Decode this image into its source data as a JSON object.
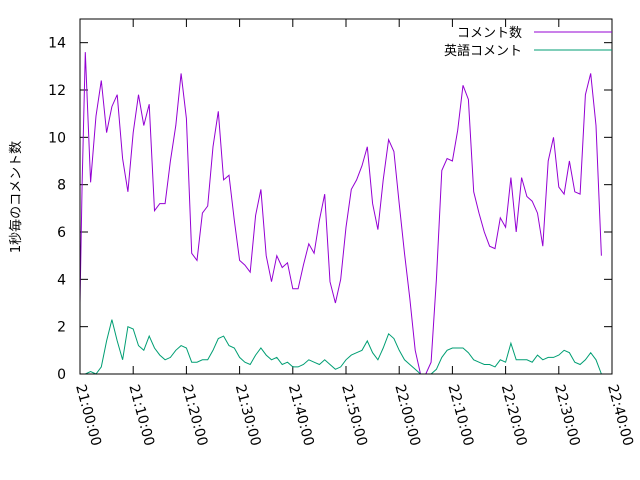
{
  "chart_data": {
    "type": "line",
    "ylabel": "1秒毎のコメント数",
    "xlabel": "",
    "title": "",
    "ylim": [
      0,
      15
    ],
    "yticks": [
      0,
      2,
      4,
      6,
      8,
      10,
      12,
      14
    ],
    "xlim_minutes": [
      0,
      100
    ],
    "xtick_minutes": [
      0,
      10,
      20,
      30,
      40,
      50,
      60,
      70,
      80,
      90,
      100
    ],
    "xtick_labels": [
      "21:00:00",
      "21:10:00",
      "21:20:00",
      "21:30:00",
      "21:40:00",
      "21:50:00",
      "22:00:00",
      "22:10:00",
      "22:20:00",
      "22:30:00",
      "22:40:00"
    ],
    "grid": false,
    "legend_position": "top-right",
    "series": [
      {
        "name": "コメント数",
        "color": "#9400d3",
        "points": [
          [
            0.0,
            3.0
          ],
          [
            0.4,
            8.0
          ],
          [
            1.0,
            13.6
          ],
          [
            2.0,
            8.1
          ],
          [
            3.0,
            10.9
          ],
          [
            4.0,
            12.4
          ],
          [
            5.0,
            10.2
          ],
          [
            6.0,
            11.3
          ],
          [
            7.0,
            11.8
          ],
          [
            8.0,
            9.1
          ],
          [
            9.0,
            7.7
          ],
          [
            10.0,
            10.2
          ],
          [
            11.0,
            11.8
          ],
          [
            12.0,
            10.5
          ],
          [
            13.0,
            11.4
          ],
          [
            14.0,
            6.9
          ],
          [
            15.0,
            7.2
          ],
          [
            16.0,
            7.2
          ],
          [
            17.0,
            9.0
          ],
          [
            18.0,
            10.5
          ],
          [
            19.0,
            12.7
          ],
          [
            20.0,
            10.8
          ],
          [
            21.0,
            5.1
          ],
          [
            22.0,
            4.8
          ],
          [
            23.0,
            6.8
          ],
          [
            24.0,
            7.1
          ],
          [
            25.0,
            9.6
          ],
          [
            26.0,
            11.1
          ],
          [
            27.0,
            8.2
          ],
          [
            28.0,
            8.4
          ],
          [
            29.0,
            6.5
          ],
          [
            30.0,
            4.8
          ],
          [
            31.0,
            4.6
          ],
          [
            32.0,
            4.3
          ],
          [
            33.0,
            6.7
          ],
          [
            34.0,
            7.8
          ],
          [
            35.0,
            5.0
          ],
          [
            36.0,
            3.9
          ],
          [
            37.0,
            5.0
          ],
          [
            38.0,
            4.5
          ],
          [
            39.0,
            4.7
          ],
          [
            40.0,
            3.6
          ],
          [
            41.0,
            3.6
          ],
          [
            42.0,
            4.6
          ],
          [
            43.0,
            5.5
          ],
          [
            44.0,
            5.1
          ],
          [
            45.0,
            6.5
          ],
          [
            46.0,
            7.6
          ],
          [
            47.0,
            3.9
          ],
          [
            48.0,
            3.0
          ],
          [
            49.0,
            4.0
          ],
          [
            50.0,
            6.2
          ],
          [
            51.0,
            7.8
          ],
          [
            52.0,
            8.2
          ],
          [
            53.0,
            8.8
          ],
          [
            54.0,
            9.6
          ],
          [
            55.0,
            7.2
          ],
          [
            56.0,
            6.1
          ],
          [
            57.0,
            8.2
          ],
          [
            58.0,
            9.9
          ],
          [
            59.0,
            9.4
          ],
          [
            60.0,
            7.2
          ],
          [
            61.0,
            5.1
          ],
          [
            62.0,
            3.2
          ],
          [
            63.0,
            1.0
          ],
          [
            64.0,
            0.0
          ],
          [
            65.0,
            0.0
          ],
          [
            66.0,
            0.5
          ],
          [
            67.0,
            4.0
          ],
          [
            68.0,
            8.6
          ],
          [
            69.0,
            9.1
          ],
          [
            70.0,
            9.0
          ],
          [
            71.0,
            10.3
          ],
          [
            72.0,
            12.2
          ],
          [
            73.0,
            11.6
          ],
          [
            74.0,
            7.7
          ],
          [
            75.0,
            6.8
          ],
          [
            76.0,
            6.0
          ],
          [
            77.0,
            5.4
          ],
          [
            78.0,
            5.3
          ],
          [
            79.0,
            6.6
          ],
          [
            80.0,
            6.2
          ],
          [
            81.0,
            8.3
          ],
          [
            82.0,
            6.0
          ],
          [
            83.0,
            8.3
          ],
          [
            84.0,
            7.5
          ],
          [
            85.0,
            7.3
          ],
          [
            86.0,
            6.8
          ],
          [
            87.0,
            5.4
          ],
          [
            88.0,
            9.0
          ],
          [
            89.0,
            10.0
          ],
          [
            90.0,
            7.9
          ],
          [
            91.0,
            7.6
          ],
          [
            92.0,
            9.0
          ],
          [
            93.0,
            7.7
          ],
          [
            94.0,
            7.6
          ],
          [
            95.0,
            11.8
          ],
          [
            96.0,
            12.7
          ],
          [
            97.0,
            10.5
          ],
          [
            98.0,
            5.0
          ]
        ]
      },
      {
        "name": "英語コメント",
        "color": "#009e73",
        "points": [
          [
            0.0,
            0.0
          ],
          [
            1.0,
            0.0
          ],
          [
            2.0,
            0.1
          ],
          [
            3.0,
            0.0
          ],
          [
            4.0,
            0.3
          ],
          [
            5.0,
            1.4
          ],
          [
            6.0,
            2.3
          ],
          [
            7.0,
            1.4
          ],
          [
            8.0,
            0.6
          ],
          [
            9.0,
            2.0
          ],
          [
            10.0,
            1.9
          ],
          [
            11.0,
            1.2
          ],
          [
            12.0,
            1.0
          ],
          [
            13.0,
            1.6
          ],
          [
            14.0,
            1.1
          ],
          [
            15.0,
            0.8
          ],
          [
            16.0,
            0.6
          ],
          [
            17.0,
            0.7
          ],
          [
            18.0,
            1.0
          ],
          [
            19.0,
            1.2
          ],
          [
            20.0,
            1.1
          ],
          [
            21.0,
            0.5
          ],
          [
            22.0,
            0.5
          ],
          [
            23.0,
            0.6
          ],
          [
            24.0,
            0.6
          ],
          [
            25.0,
            1.0
          ],
          [
            26.0,
            1.5
          ],
          [
            27.0,
            1.6
          ],
          [
            28.0,
            1.2
          ],
          [
            29.0,
            1.1
          ],
          [
            30.0,
            0.7
          ],
          [
            31.0,
            0.5
          ],
          [
            32.0,
            0.4
          ],
          [
            33.0,
            0.8
          ],
          [
            34.0,
            1.1
          ],
          [
            35.0,
            0.8
          ],
          [
            36.0,
            0.6
          ],
          [
            37.0,
            0.7
          ],
          [
            38.0,
            0.4
          ],
          [
            39.0,
            0.5
          ],
          [
            40.0,
            0.3
          ],
          [
            41.0,
            0.3
          ],
          [
            42.0,
            0.4
          ],
          [
            43.0,
            0.6
          ],
          [
            44.0,
            0.5
          ],
          [
            45.0,
            0.4
          ],
          [
            46.0,
            0.6
          ],
          [
            47.0,
            0.4
          ],
          [
            48.0,
            0.2
          ],
          [
            49.0,
            0.3
          ],
          [
            50.0,
            0.6
          ],
          [
            51.0,
            0.8
          ],
          [
            52.0,
            0.9
          ],
          [
            53.0,
            1.0
          ],
          [
            54.0,
            1.4
          ],
          [
            55.0,
            0.9
          ],
          [
            56.0,
            0.6
          ],
          [
            57.0,
            1.1
          ],
          [
            58.0,
            1.7
          ],
          [
            59.0,
            1.5
          ],
          [
            60.0,
            1.0
          ],
          [
            61.0,
            0.6
          ],
          [
            62.0,
            0.4
          ],
          [
            63.0,
            0.2
          ],
          [
            64.0,
            0.0
          ],
          [
            65.0,
            0.0
          ],
          [
            66.0,
            0.0
          ],
          [
            67.0,
            0.2
          ],
          [
            68.0,
            0.7
          ],
          [
            69.0,
            1.0
          ],
          [
            70.0,
            1.1
          ],
          [
            71.0,
            1.1
          ],
          [
            72.0,
            1.1
          ],
          [
            73.0,
            0.9
          ],
          [
            74.0,
            0.6
          ],
          [
            75.0,
            0.5
          ],
          [
            76.0,
            0.4
          ],
          [
            77.0,
            0.4
          ],
          [
            78.0,
            0.3
          ],
          [
            79.0,
            0.6
          ],
          [
            80.0,
            0.5
          ],
          [
            81.0,
            1.3
          ],
          [
            82.0,
            0.6
          ],
          [
            83.0,
            0.6
          ],
          [
            84.0,
            0.6
          ],
          [
            85.0,
            0.5
          ],
          [
            86.0,
            0.8
          ],
          [
            87.0,
            0.6
          ],
          [
            88.0,
            0.7
          ],
          [
            89.0,
            0.7
          ],
          [
            90.0,
            0.8
          ],
          [
            91.0,
            1.0
          ],
          [
            92.0,
            0.9
          ],
          [
            93.0,
            0.5
          ],
          [
            94.0,
            0.4
          ],
          [
            95.0,
            0.6
          ],
          [
            96.0,
            0.9
          ],
          [
            97.0,
            0.6
          ],
          [
            98.0,
            0.0
          ]
        ]
      }
    ]
  }
}
